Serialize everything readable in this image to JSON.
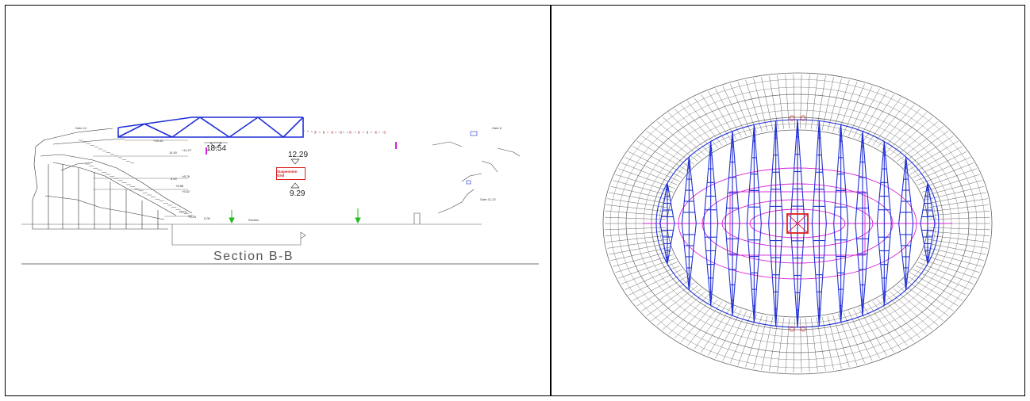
{
  "section": {
    "title": "Section B-B",
    "levels": {
      "truss_top": "18.54",
      "upper": "12.29",
      "lower": "9.29"
    },
    "box_label": "Suspension Grid",
    "small_labels": [
      "Gate 12",
      "Gate 6",
      "+18.45",
      "+14.27",
      "14.50",
      "+8.76",
      "8.00",
      "+6.88",
      "+5.82",
      "+3.73",
      "+0.00",
      "0.00",
      "Gate 11-12",
      "Section"
    ]
  },
  "colors": {
    "truss": "#1f2fd6",
    "magenta": "#d61fd6",
    "red": "#e02020",
    "seating": "#555555",
    "green": "#22bb22"
  }
}
